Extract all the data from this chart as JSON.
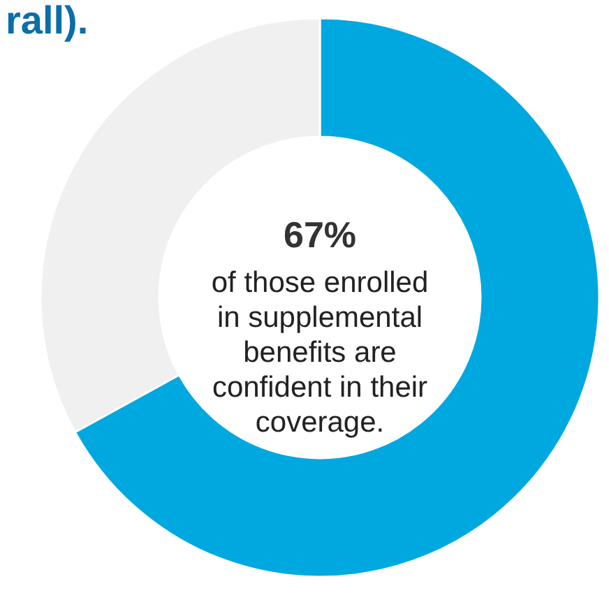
{
  "chart_data": {
    "type": "donut",
    "title": "rall).",
    "categories": [
      null,
      null
    ],
    "values": [
      67,
      33
    ],
    "colors": [
      "#00a8e0",
      "#f0f0f0"
    ],
    "annotations": [
      "67%",
      "of those enrolled in supplemental benefits are confident in their coverage."
    ]
  }
}
